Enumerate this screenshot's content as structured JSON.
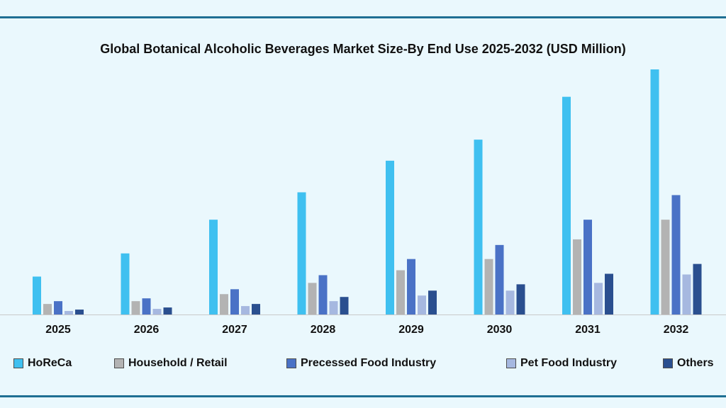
{
  "chart_data": {
    "type": "bar",
    "title": "Global Botanical Alcoholic Beverages Market Size-By End Use 2025-2032 (USD Million)",
    "xlabel": "",
    "ylabel": "",
    "categories": [
      "2025",
      "2026",
      "2027",
      "2028",
      "2029",
      "2030",
      "2031",
      "2032"
    ],
    "ylim": [
      0,
      350
    ],
    "grid": false,
    "legend_position": "bottom",
    "series": [
      {
        "name": "HoReCa",
        "color": "#3fc0f0",
        "values": [
          54,
          87,
          135,
          174,
          219,
          249,
          310,
          349
        ]
      },
      {
        "name": "Household / Retail",
        "color": "#b3b3b3",
        "values": [
          15,
          19,
          29,
          45,
          63,
          79,
          107,
          135
        ]
      },
      {
        "name": "Precessed Food Industry",
        "color": "#4a72c6",
        "values": [
          19,
          23,
          36,
          56,
          79,
          99,
          135,
          170
        ]
      },
      {
        "name": "Pet Food Industry",
        "color": "#a6b8e0",
        "values": [
          5,
          8,
          12,
          19,
          27,
          34,
          45,
          57
        ]
      },
      {
        "name": "Others",
        "color": "#2a4f8f",
        "values": [
          7,
          10,
          15,
          25,
          34,
          43,
          58,
          72
        ]
      }
    ]
  }
}
